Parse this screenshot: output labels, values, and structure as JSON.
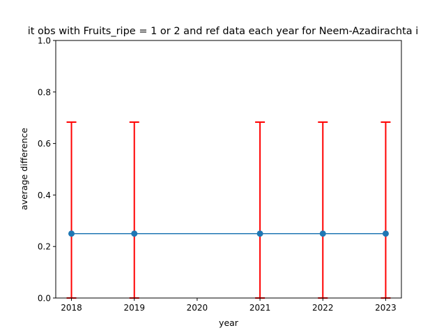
{
  "chart_data": {
    "type": "line",
    "title": "it obs with Fruits_ripe = 1 or 2 and ref data each year for Neem-Azadirachta i",
    "xlabel": "year",
    "ylabel": "average difference",
    "x": [
      2018,
      2019,
      2021,
      2022,
      2023
    ],
    "y": [
      0.25,
      0.25,
      0.25,
      0.25,
      0.25
    ],
    "error_lower": [
      0.0,
      0.0,
      0.0,
      0.0,
      0.0
    ],
    "error_upper": [
      0.683,
      0.683,
      0.683,
      0.683,
      0.683
    ],
    "xticks": [
      2018,
      2019,
      2020,
      2021,
      2022,
      2023
    ],
    "yticks": [
      0.0,
      0.2,
      0.4,
      0.6,
      0.8,
      1.0
    ],
    "xlim": [
      2017.75,
      2023.25
    ],
    "ylim": [
      0.0,
      1.0
    ],
    "grid": false,
    "colors": {
      "line": "#1f77b4",
      "marker": "#1f77b4",
      "errorbar": "#ff0000"
    }
  }
}
